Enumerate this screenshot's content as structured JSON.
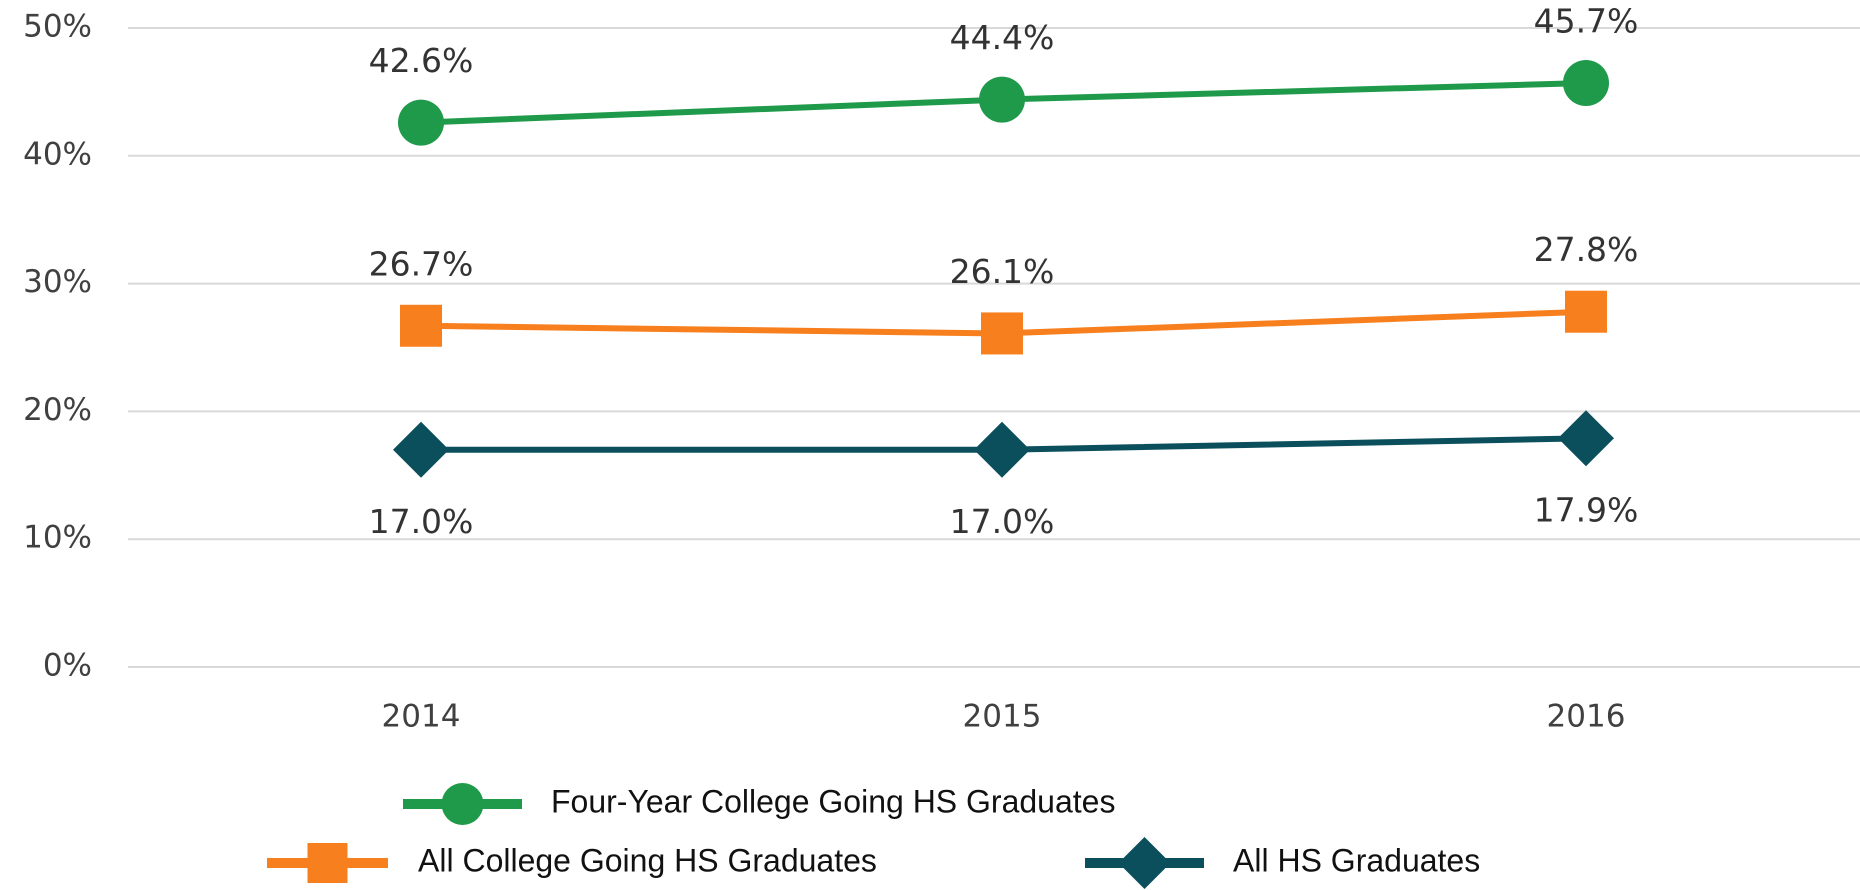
{
  "chart_data": {
    "type": "line",
    "categories": [
      "2014",
      "2015",
      "2016"
    ],
    "series": [
      {
        "name": "Four-Year College Going HS Graduates",
        "color": "#1e9a4a",
        "marker": "circle",
        "label_position": "above",
        "values": [
          42.6,
          44.4,
          45.7
        ],
        "value_labels": [
          "42.6%",
          "44.4%",
          "45.7%"
        ]
      },
      {
        "name": "All College Going HS Graduates",
        "color": "#f77f1d",
        "marker": "square",
        "label_position": "above",
        "values": [
          26.7,
          26.1,
          27.8
        ],
        "value_labels": [
          "26.7%",
          "26.1%",
          "27.8%"
        ]
      },
      {
        "name": "All HS Graduates",
        "color": "#0b4f5c",
        "marker": "diamond",
        "label_position": "below",
        "values": [
          17.0,
          17.0,
          17.9
        ],
        "value_labels": [
          "17.0%",
          "17.0%",
          "17.9%"
        ]
      }
    ],
    "ylim": [
      0,
      50
    ],
    "yticks": [
      {
        "value": 0,
        "label": "0%"
      },
      {
        "value": 10,
        "label": "10%"
      },
      {
        "value": 20,
        "label": "20%"
      },
      {
        "value": 30,
        "label": "30%"
      },
      {
        "value": 40,
        "label": "40%"
      },
      {
        "value": 50,
        "label": "50%"
      }
    ],
    "grid": true
  }
}
